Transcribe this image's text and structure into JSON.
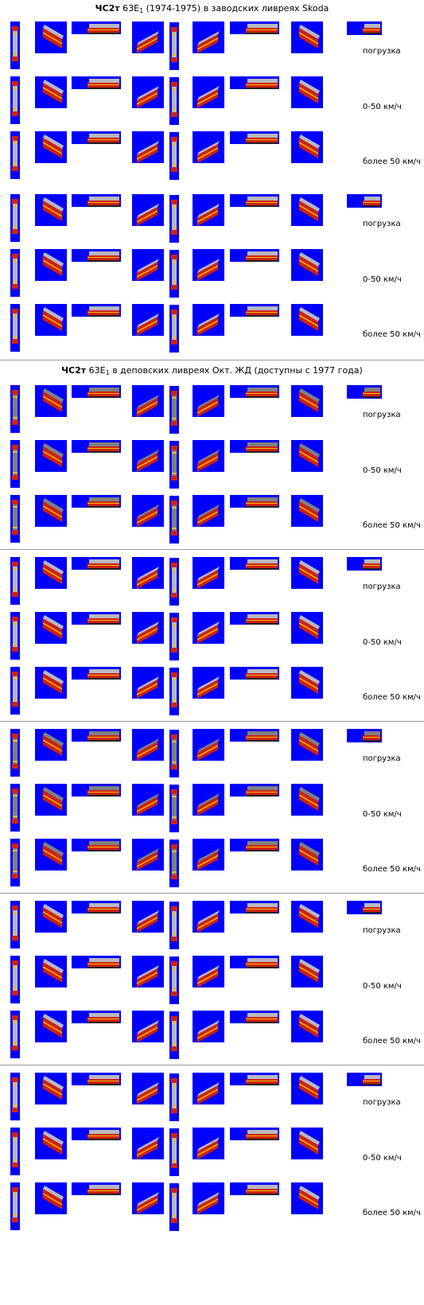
{
  "page": {
    "background": "#ffffff",
    "sprite_background": "#0000ff",
    "separator_color": "#9a9a9a",
    "loco_body_color": "#d02010",
    "loco_stripe_color": "#f0c000",
    "loco_roof_color": "#b8b8c0",
    "loco_depot_roof_color": "#808080"
  },
  "sections": [
    {
      "title_model": "ЧС2т",
      "title_series": "63Е",
      "title_sub": "1",
      "title_rest": " (1974-1975) в заводских ливреях Skoda"
    },
    {
      "title_model": "ЧС2т",
      "title_series": "63Е",
      "title_sub": "1",
      "title_rest": " в деповских ливреях Окт. ЖД (доступны с 1977 года)"
    }
  ],
  "row_labels": [
    "погрузка",
    "0-50 км/ч",
    "более 50 км/ч"
  ],
  "groups": [
    {
      "section": 0,
      "livery": "factory",
      "top_strip": true
    },
    {
      "section": 0,
      "livery": "factory",
      "top_strip": true
    },
    {
      "section": 1,
      "livery": "depot",
      "top_strip": true
    },
    {
      "section": 1,
      "livery": "factory",
      "top_strip": true
    },
    {
      "section": 1,
      "livery": "depot",
      "top_strip": true
    },
    {
      "section": 1,
      "livery": "factory",
      "top_strip": true
    },
    {
      "section": 1,
      "livery": "factory",
      "top_strip": true
    }
  ]
}
